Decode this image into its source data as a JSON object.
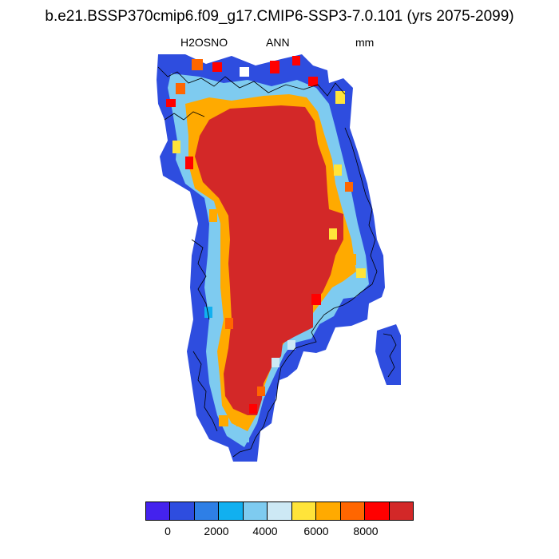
{
  "title": "b.e21.BSSP370cmip6.f09_g17.CMIP6-SSP3-7.0.101 (yrs 2075-2099)",
  "subtitle": {
    "variable": "H2OSNO",
    "season": "ANN",
    "units": "mm"
  },
  "colorbar": {
    "colors": [
      "#4422ee",
      "#2e4ddf",
      "#2e7fe6",
      "#11b0f0",
      "#7ecbf0",
      "#cde9f5",
      "#ffe43a",
      "#ffaa00",
      "#ff6600",
      "#ff0000",
      "#d32828"
    ],
    "tick_labels": [
      "0",
      "2000",
      "4000",
      "6000",
      "8000"
    ]
  },
  "map": {
    "region": "Greenland",
    "interior_value_class": "#d32828",
    "ocean_color": "#ffffff"
  }
}
